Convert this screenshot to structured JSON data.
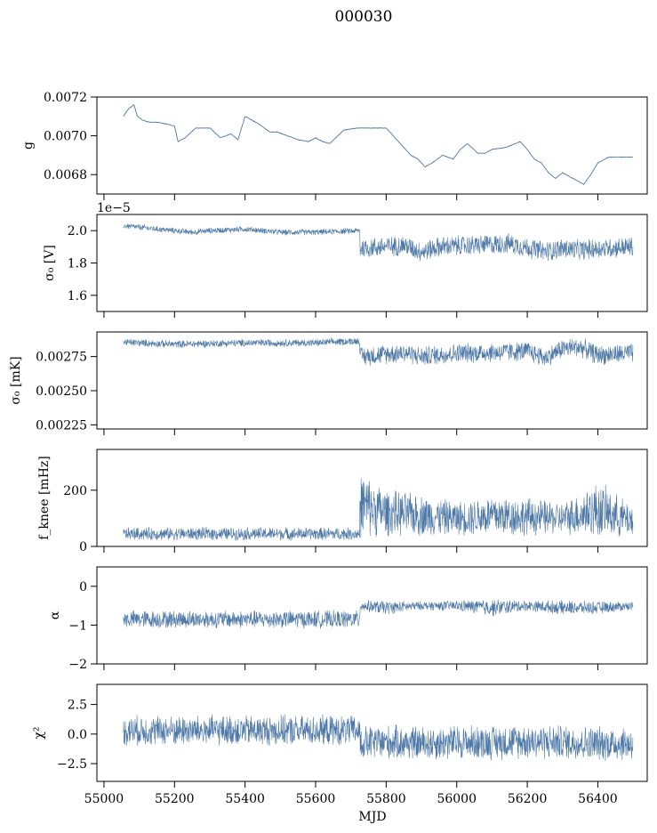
{
  "figure": {
    "title": "000030",
    "xlabel": "MJD",
    "x_range": [
      54980,
      56540
    ],
    "x_ticks": [
      55000,
      55200,
      55400,
      55600,
      55800,
      56000,
      56200,
      56400
    ],
    "series_color": "#4e79a7"
  },
  "chart_data": [
    {
      "type": "line",
      "ylabel": "g",
      "ylim": [
        0.0067,
        0.0072
      ],
      "yticks": [
        0.0068,
        0.007,
        0.0072
      ],
      "ytick_labels": [
        "0.0068",
        "0.0070",
        "0.0072"
      ],
      "noise": 1.2e-06,
      "x": [
        55055,
        55070,
        55085,
        55095,
        55110,
        55130,
        55150,
        55180,
        55200,
        55210,
        55230,
        55260,
        55300,
        55330,
        55360,
        55380,
        55400,
        55440,
        55470,
        55490,
        55520,
        55550,
        55580,
        55600,
        55620,
        55640,
        55680,
        55720,
        55760,
        55800,
        55820,
        55840,
        55870,
        55890,
        55910,
        55930,
        55960,
        55990,
        56010,
        56030,
        56060,
        56080,
        56100,
        56140,
        56180,
        56200,
        56220,
        56240,
        56260,
        56280,
        56300,
        56320,
        56340,
        56360,
        56380,
        56400,
        56430,
        56470,
        56500
      ],
      "y": [
        0.0071,
        0.00714,
        0.00716,
        0.0071,
        0.00708,
        0.00707,
        0.00707,
        0.00706,
        0.00705,
        0.00697,
        0.00699,
        0.00704,
        0.00704,
        0.00699,
        0.00701,
        0.00698,
        0.0071,
        0.00706,
        0.00702,
        0.00702,
        0.007,
        0.00698,
        0.00697,
        0.00699,
        0.00697,
        0.00696,
        0.00703,
        0.00704,
        0.00704,
        0.00704,
        0.007,
        0.00696,
        0.0069,
        0.00688,
        0.00684,
        0.00686,
        0.0069,
        0.00688,
        0.00693,
        0.00696,
        0.00691,
        0.00691,
        0.00693,
        0.00694,
        0.00697,
        0.00693,
        0.00688,
        0.00686,
        0.00681,
        0.00678,
        0.00681,
        0.00679,
        0.00677,
        0.00675,
        0.0068,
        0.00686,
        0.00689,
        0.00689,
        0.00689
      ]
    },
    {
      "type": "line",
      "ylabel": "σ₀ [V]",
      "offset_text": "1e−5",
      "ylim": [
        1.5,
        2.1
      ],
      "yticks": [
        1.6,
        1.8,
        2.0
      ],
      "ytick_labels": [
        "1.6",
        "1.8",
        "2.0"
      ],
      "x": [
        55055,
        55150,
        55200,
        55250,
        55300,
        55400,
        55500,
        55600,
        55725,
        55726,
        55850,
        55900,
        55950,
        56050,
        56150,
        56250,
        56300,
        56350,
        56400,
        56500
      ],
      "y": [
        2.03,
        2.01,
        2.0,
        1.99,
        2.0,
        2.01,
        1.99,
        1.99,
        2.0,
        1.89,
        1.91,
        1.87,
        1.9,
        1.91,
        1.92,
        1.87,
        1.89,
        1.88,
        1.89,
        1.9
      ],
      "band": [
        0.02,
        0.02,
        0.02,
        0.02,
        0.02,
        0.02,
        0.02,
        0.02,
        0.02,
        0.07,
        0.07,
        0.07,
        0.07,
        0.07,
        0.07,
        0.07,
        0.07,
        0.07,
        0.07,
        0.07
      ]
    },
    {
      "type": "line",
      "ylabel": "σ₀ [mK]",
      "ylim": [
        0.00222,
        0.00293
      ],
      "yticks": [
        0.00225,
        0.0025,
        0.00275
      ],
      "ytick_labels": [
        "0.00225",
        "0.00250",
        "0.00275"
      ],
      "x": [
        55055,
        55200,
        55400,
        55600,
        55725,
        55726,
        55850,
        55900,
        56000,
        56100,
        56200,
        56250,
        56300,
        56350,
        56400,
        56500
      ],
      "y": [
        0.002855,
        0.00284,
        0.00285,
        0.00285,
        0.002865,
        0.00275,
        0.00278,
        0.00275,
        0.002775,
        0.00278,
        0.00279,
        0.00274,
        0.00281,
        0.00282,
        0.00276,
        0.002775
      ],
      "band": [
        3e-05,
        3e-05,
        3e-05,
        3e-05,
        3e-05,
        8e-05,
        8e-05,
        8e-05,
        8e-05,
        8e-05,
        8e-05,
        8e-05,
        8e-05,
        8e-05,
        8e-05,
        8e-05
      ]
    },
    {
      "type": "line",
      "ylabel": "f_knee [mHz]",
      "ylim": [
        0,
        345
      ],
      "yticks": [
        0,
        200
      ],
      "ytick_labels": [
        "0",
        "200"
      ],
      "x": [
        55055,
        55200,
        55400,
        55600,
        55725,
        55726,
        55800,
        55900,
        56000,
        56100,
        56200,
        56300,
        56400,
        56500
      ],
      "y": [
        45,
        45,
        45,
        45,
        45,
        150,
        120,
        110,
        100,
        110,
        105,
        100,
        130,
        90
      ],
      "band": [
        25,
        25,
        25,
        25,
        25,
        130,
        90,
        80,
        65,
        80,
        75,
        60,
        110,
        60
      ]
    },
    {
      "type": "line",
      "ylabel": "α",
      "ylim": [
        -2,
        0.5
      ],
      "yticks": [
        -2,
        -1,
        0
      ],
      "ytick_labels": [
        "−2",
        "−1",
        "0"
      ],
      "x": [
        55055,
        55200,
        55400,
        55600,
        55725,
        55726,
        55800,
        55900,
        56000,
        56100,
        56200,
        56300,
        56400,
        56500
      ],
      "y": [
        -0.85,
        -0.85,
        -0.85,
        -0.85,
        -0.85,
        -0.5,
        -0.55,
        -0.5,
        -0.5,
        -0.55,
        -0.5,
        -0.55,
        -0.55,
        -0.5
      ],
      "band": [
        0.25,
        0.25,
        0.25,
        0.25,
        0.25,
        0.15,
        0.2,
        0.12,
        0.15,
        0.25,
        0.15,
        0.2,
        0.18,
        0.12
      ]
    },
    {
      "type": "line",
      "ylabel": "χ²",
      "ylim": [
        -4,
        4.2
      ],
      "yticks": [
        -2.5,
        0.0,
        2.5
      ],
      "ytick_labels": [
        "−2.5",
        "0.0",
        "2.5"
      ],
      "x": [
        55055,
        55200,
        55400,
        55600,
        55725,
        55726,
        55800,
        55900,
        56000,
        56100,
        56200,
        56300,
        56400,
        56500
      ],
      "y": [
        0.3,
        0.3,
        0.3,
        0.3,
        0.3,
        -0.8,
        -0.7,
        -0.8,
        -0.7,
        -0.7,
        -0.6,
        -0.7,
        -0.8,
        -0.8
      ],
      "band": [
        1.4,
        1.4,
        1.4,
        1.4,
        1.4,
        1.6,
        1.6,
        1.6,
        1.6,
        1.6,
        1.6,
        1.6,
        1.6,
        1.6
      ]
    }
  ]
}
